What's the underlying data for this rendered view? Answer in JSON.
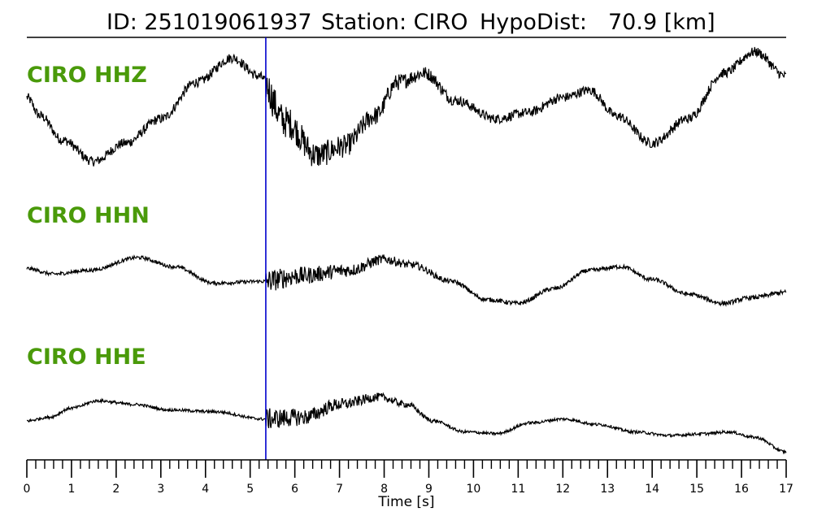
{
  "title": {
    "id_label": "ID: 251019061937",
    "station_label": "Station: CIRO",
    "hypo_label": "HypoDist:",
    "hypo_value": "70.9 [km]"
  },
  "colors": {
    "channel_label": "#4a9a0a",
    "trace": "#000000",
    "pick_line": "#0000cc"
  },
  "chart_data": {
    "type": "line",
    "xlabel": "Time [s]",
    "xlim": [
      0,
      17
    ],
    "x_tick_labels": [
      "0",
      "1",
      "2",
      "3",
      "4",
      "5",
      "6",
      "7",
      "8",
      "9",
      "10",
      "11",
      "12",
      "13",
      "14",
      "15",
      "16",
      "17"
    ],
    "minor_tick_step": 0.2,
    "pick_time": 5.35,
    "series": [
      {
        "name": "CIRO HHZ",
        "key": [
          [
            0,
            0.2
          ],
          [
            0.3,
            -0.1
          ],
          [
            0.8,
            -0.5
          ],
          [
            1.5,
            -0.85
          ],
          [
            2.2,
            -0.55
          ],
          [
            3.0,
            -0.15
          ],
          [
            3.8,
            0.45
          ],
          [
            4.6,
            0.85
          ],
          [
            5.2,
            0.55
          ],
          [
            5.8,
            -0.2
          ],
          [
            6.5,
            -0.75
          ],
          [
            7.1,
            -0.6
          ],
          [
            7.8,
            -0.1
          ],
          [
            8.3,
            0.45
          ],
          [
            8.9,
            0.6
          ],
          [
            9.6,
            0.15
          ],
          [
            10.5,
            -0.15
          ],
          [
            11.2,
            -0.05
          ],
          [
            12.0,
            0.2
          ],
          [
            12.6,
            0.32
          ],
          [
            13.2,
            -0.1
          ],
          [
            14.0,
            -0.55
          ],
          [
            14.8,
            -0.15
          ],
          [
            15.6,
            0.6
          ],
          [
            16.3,
            0.95
          ],
          [
            17.0,
            0.55
          ]
        ],
        "noise_pre": 0.08,
        "noise_post": 0.3,
        "noise_tail": 0.08,
        "coda_end": 9.6
      },
      {
        "name": "CIRO HHN",
        "key": [
          [
            0,
            0.1
          ],
          [
            0.6,
            -0.05
          ],
          [
            1.4,
            0.05
          ],
          [
            2.5,
            0.4
          ],
          [
            3.3,
            0.15
          ],
          [
            4.2,
            -0.3
          ],
          [
            5.3,
            -0.25
          ],
          [
            6.1,
            -0.1
          ],
          [
            7.2,
            0.05
          ],
          [
            8.0,
            0.35
          ],
          [
            8.6,
            0.2
          ],
          [
            9.5,
            -0.25
          ],
          [
            10.3,
            -0.75
          ],
          [
            11.0,
            -0.85
          ],
          [
            11.8,
            -0.45
          ],
          [
            12.6,
            0.05
          ],
          [
            13.3,
            0.15
          ],
          [
            14.0,
            -0.2
          ],
          [
            14.8,
            -0.6
          ],
          [
            15.6,
            -0.85
          ],
          [
            16.2,
            -0.7
          ],
          [
            17.0,
            -0.55
          ]
        ],
        "noise_pre": 0.05,
        "noise_post": 0.32,
        "noise_tail": 0.06,
        "coda_end": 9.4
      },
      {
        "name": "CIRO HHE",
        "key": [
          [
            0,
            0.0
          ],
          [
            0.5,
            0.1
          ],
          [
            1.0,
            0.35
          ],
          [
            1.6,
            0.55
          ],
          [
            2.4,
            0.45
          ],
          [
            3.2,
            0.3
          ],
          [
            4.2,
            0.25
          ],
          [
            5.3,
            0.05
          ],
          [
            6.2,
            0.1
          ],
          [
            7.0,
            0.45
          ],
          [
            7.9,
            0.65
          ],
          [
            8.5,
            0.45
          ],
          [
            9.1,
            0.0
          ],
          [
            9.8,
            -0.3
          ],
          [
            10.5,
            -0.35
          ],
          [
            11.3,
            -0.05
          ],
          [
            12.0,
            0.05
          ],
          [
            12.8,
            -0.1
          ],
          [
            13.6,
            -0.3
          ],
          [
            14.4,
            -0.4
          ],
          [
            15.2,
            -0.35
          ],
          [
            15.7,
            -0.3
          ],
          [
            16.3,
            -0.45
          ],
          [
            17.0,
            -0.85
          ]
        ],
        "noise_pre": 0.04,
        "noise_post": 0.3,
        "noise_tail": 0.04,
        "coda_end": 9.2
      }
    ]
  }
}
